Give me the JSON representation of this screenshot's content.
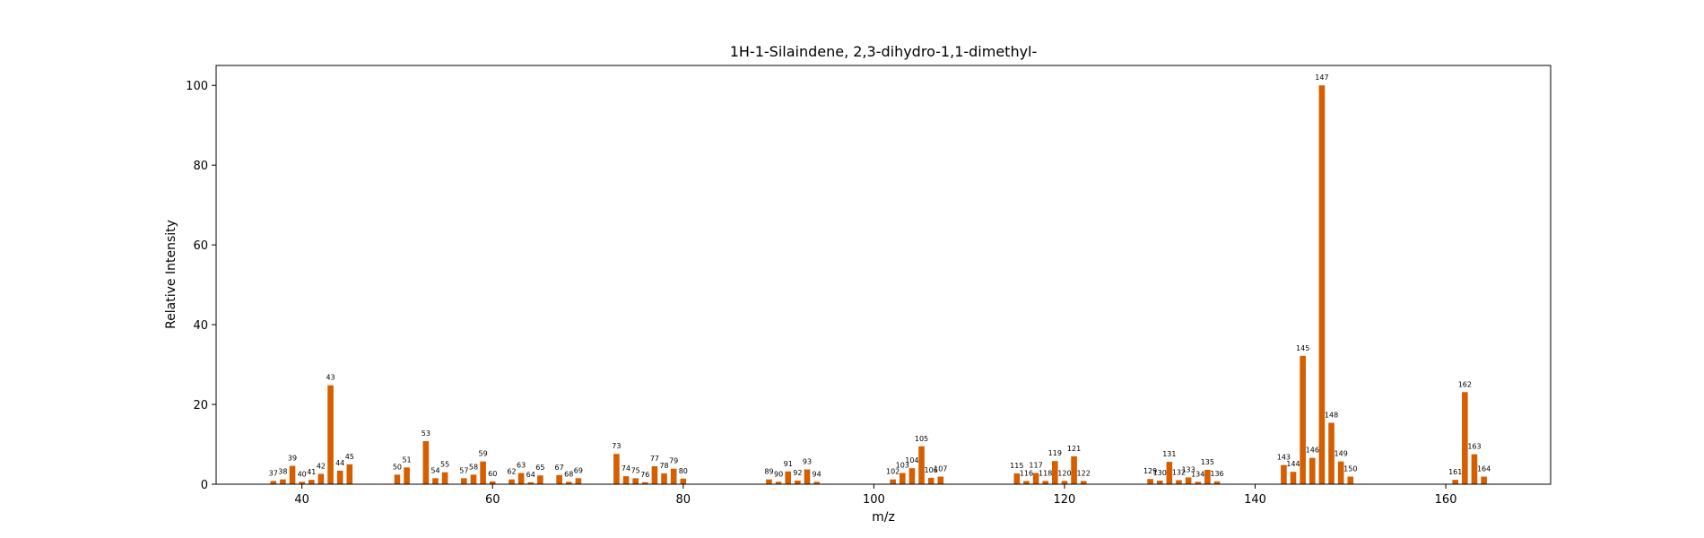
{
  "chart_data": {
    "type": "bar",
    "title": "1H-1-Silaindene, 2,3-dihydro-1,1-dimethyl-",
    "xlabel": "m/z",
    "ylabel": "Relative Intensity",
    "xlim": [
      31,
      171
    ],
    "ylim": [
      0,
      105
    ],
    "xticks": [
      40,
      60,
      80,
      100,
      120,
      140,
      160
    ],
    "yticks": [
      0,
      20,
      40,
      60,
      80,
      100
    ],
    "bar_color": "#d55e00",
    "grid": false,
    "legend": false,
    "peaks": [
      {
        "mz": 37,
        "intensity": 0.8
      },
      {
        "mz": 38,
        "intensity": 1.2
      },
      {
        "mz": 39,
        "intensity": 4.6
      },
      {
        "mz": 40,
        "intensity": 0.6
      },
      {
        "mz": 41,
        "intensity": 1.1
      },
      {
        "mz": 42,
        "intensity": 2.6
      },
      {
        "mz": 43,
        "intensity": 24.8
      },
      {
        "mz": 44,
        "intensity": 3.4
      },
      {
        "mz": 45,
        "intensity": 5.0
      },
      {
        "mz": 50,
        "intensity": 2.4
      },
      {
        "mz": 51,
        "intensity": 4.2
      },
      {
        "mz": 53,
        "intensity": 10.8
      },
      {
        "mz": 54,
        "intensity": 1.5
      },
      {
        "mz": 55,
        "intensity": 3.0
      },
      {
        "mz": 57,
        "intensity": 1.5
      },
      {
        "mz": 58,
        "intensity": 2.4
      },
      {
        "mz": 59,
        "intensity": 5.7
      },
      {
        "mz": 60,
        "intensity": 0.7
      },
      {
        "mz": 62,
        "intensity": 1.2
      },
      {
        "mz": 63,
        "intensity": 2.8
      },
      {
        "mz": 64,
        "intensity": 0.5
      },
      {
        "mz": 65,
        "intensity": 2.2
      },
      {
        "mz": 67,
        "intensity": 2.3
      },
      {
        "mz": 68,
        "intensity": 0.6
      },
      {
        "mz": 69,
        "intensity": 1.5
      },
      {
        "mz": 73,
        "intensity": 7.6
      },
      {
        "mz": 74,
        "intensity": 2.0
      },
      {
        "mz": 75,
        "intensity": 1.5
      },
      {
        "mz": 76,
        "intensity": 0.5
      },
      {
        "mz": 77,
        "intensity": 4.5
      },
      {
        "mz": 78,
        "intensity": 2.7
      },
      {
        "mz": 79,
        "intensity": 3.9
      },
      {
        "mz": 80,
        "intensity": 1.4
      },
      {
        "mz": 89,
        "intensity": 1.2
      },
      {
        "mz": 90,
        "intensity": 0.6
      },
      {
        "mz": 91,
        "intensity": 3.2
      },
      {
        "mz": 92,
        "intensity": 0.9
      },
      {
        "mz": 93,
        "intensity": 3.7
      },
      {
        "mz": 94,
        "intensity": 0.6
      },
      {
        "mz": 102,
        "intensity": 1.2
      },
      {
        "mz": 103,
        "intensity": 2.8
      },
      {
        "mz": 104,
        "intensity": 4.0
      },
      {
        "mz": 105,
        "intensity": 9.5
      },
      {
        "mz": 106,
        "intensity": 1.6
      },
      {
        "mz": 107,
        "intensity": 1.9
      },
      {
        "mz": 115,
        "intensity": 2.7
      },
      {
        "mz": 116,
        "intensity": 0.8
      },
      {
        "mz": 117,
        "intensity": 2.8
      },
      {
        "mz": 118,
        "intensity": 0.8
      },
      {
        "mz": 119,
        "intensity": 5.8
      },
      {
        "mz": 120,
        "intensity": 0.8
      },
      {
        "mz": 121,
        "intensity": 7.0
      },
      {
        "mz": 122,
        "intensity": 0.8
      },
      {
        "mz": 129,
        "intensity": 1.3
      },
      {
        "mz": 130,
        "intensity": 0.9
      },
      {
        "mz": 131,
        "intensity": 5.6
      },
      {
        "mz": 132,
        "intensity": 1.0
      },
      {
        "mz": 133,
        "intensity": 1.7
      },
      {
        "mz": 134,
        "intensity": 0.6
      },
      {
        "mz": 135,
        "intensity": 3.6
      },
      {
        "mz": 136,
        "intensity": 0.7
      },
      {
        "mz": 143,
        "intensity": 4.8
      },
      {
        "mz": 144,
        "intensity": 3.1
      },
      {
        "mz": 145,
        "intensity": 32.2
      },
      {
        "mz": 146,
        "intensity": 6.6
      },
      {
        "mz": 147,
        "intensity": 100.0
      },
      {
        "mz": 148,
        "intensity": 15.4
      },
      {
        "mz": 149,
        "intensity": 5.7
      },
      {
        "mz": 150,
        "intensity": 1.9
      },
      {
        "mz": 161,
        "intensity": 1.1
      },
      {
        "mz": 162,
        "intensity": 23.1
      },
      {
        "mz": 163,
        "intensity": 7.5
      },
      {
        "mz": 164,
        "intensity": 1.9
      }
    ]
  }
}
